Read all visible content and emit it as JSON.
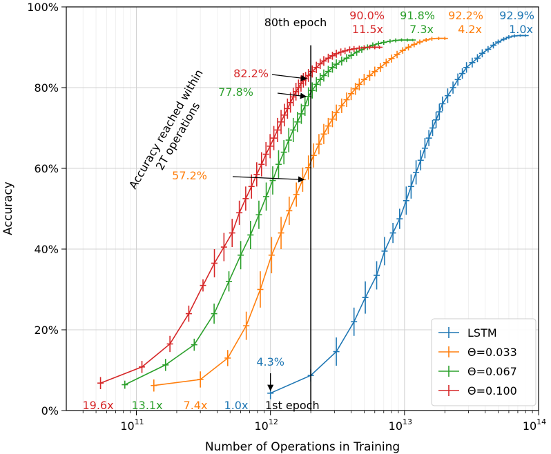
{
  "chart_data": {
    "type": "line",
    "title": "",
    "xlabel": "Number of Operations in Training",
    "ylabel": "Accuracy",
    "xscale": "log",
    "xlim": [
      30000000000.0,
      100000000000000.0
    ],
    "ylim": [
      0,
      100
    ],
    "grid": true,
    "legend_position": "lower-right",
    "x_ticks": [
      {
        "value": 100000000000.0,
        "base": "10",
        "exp": "11"
      },
      {
        "value": 1000000000000.0,
        "base": "10",
        "exp": "12"
      },
      {
        "value": 10000000000000.0,
        "base": "10",
        "exp": "13"
      },
      {
        "value": 100000000000000.0,
        "base": "10",
        "exp": "14"
      }
    ],
    "y_ticks": [
      {
        "value": 0,
        "label": "0%"
      },
      {
        "value": 20,
        "label": "20%"
      },
      {
        "value": 40,
        "label": "40%"
      },
      {
        "value": 60,
        "label": "60%"
      },
      {
        "value": 80,
        "label": "80%"
      },
      {
        "value": 100,
        "label": "100%"
      }
    ],
    "series": [
      {
        "name": "LSTM",
        "color": "#1f77b4",
        "points": [
          [
            1000000000000.0,
            4.3,
            1.5
          ],
          [
            2000000000000.0,
            8.7,
            1.5
          ],
          [
            3100000000000.0,
            14.6,
            3.5
          ],
          [
            4200000000000.0,
            22,
            3.5
          ],
          [
            5100000000000.0,
            28,
            4
          ],
          [
            6200000000000.0,
            33.5,
            3.5
          ],
          [
            7100000000000.0,
            39.5,
            3.5
          ],
          [
            8200000000000.0,
            44,
            2.5
          ],
          [
            9200000000000.0,
            47.5,
            2.5
          ],
          [
            10300000000000.0,
            52,
            3.5
          ],
          [
            11200000000000.0,
            55.5,
            3
          ],
          [
            12200000000000.0,
            59,
            3
          ],
          [
            13200000000000.0,
            62,
            2.5
          ],
          [
            14200000000000.0,
            65,
            2.5
          ],
          [
            15200000000000.0,
            67.5,
            2
          ],
          [
            16200000000000.0,
            70,
            2
          ],
          [
            17200000000000.0,
            72,
            2
          ],
          [
            18200000000000.0,
            74,
            2
          ],
          [
            19200000000000.0,
            76,
            1.8
          ],
          [
            21000000000000.0,
            78,
            1.8
          ],
          [
            23000000000000.0,
            80,
            1.5
          ],
          [
            25000000000000.0,
            82,
            1.5
          ],
          [
            27000000000000.0,
            83.5,
            1.3
          ],
          [
            29000000000000.0,
            85,
            1.3
          ],
          [
            32000000000000.0,
            86.2,
            1.2
          ],
          [
            35000000000000.0,
            87.3,
            1.0
          ],
          [
            38000000000000.0,
            88.5,
            1.0
          ],
          [
            42000000000000.0,
            89.5,
            0.8
          ],
          [
            46000000000000.0,
            90.5,
            0.8
          ],
          [
            50000000000000.0,
            91.3,
            0.6
          ],
          [
            55000000000000.0,
            92,
            0.5
          ],
          [
            60000000000000.0,
            92.5,
            0.5
          ],
          [
            66000000000000.0,
            92.8,
            0.4
          ],
          [
            73000000000000.0,
            92.9,
            0.3
          ],
          [
            80000000000000.0,
            92.9,
            0.3
          ]
        ]
      },
      {
        "name": "Θ=0.033",
        "color": "#ff7f0e",
        "points": [
          [
            135000000000.0,
            6.2,
            1.5
          ],
          [
            300000000000.0,
            7.7,
            2
          ],
          [
            480000000000.0,
            13,
            2
          ],
          [
            660000000000.0,
            21,
            3.5
          ],
          [
            840000000000.0,
            30,
            4.5
          ],
          [
            1020000000000.0,
            38.5,
            4.5
          ],
          [
            1200000000000.0,
            44,
            4
          ],
          [
            1380000000000.0,
            49.5,
            3.5
          ],
          [
            1560000000000.0,
            53.5,
            3
          ],
          [
            1740000000000.0,
            57.2,
            3
          ],
          [
            1920000000000.0,
            60.2,
            3
          ],
          [
            2100000000000.0,
            63.2,
            3
          ],
          [
            2300000000000.0,
            66,
            2.5
          ],
          [
            2500000000000.0,
            68.5,
            2.5
          ],
          [
            2700000000000.0,
            70.5,
            2
          ],
          [
            2900000000000.0,
            72.2,
            2
          ],
          [
            3100000000000.0,
            73.8,
            2
          ],
          [
            3400000000000.0,
            75.5,
            1.8
          ],
          [
            3700000000000.0,
            77,
            1.8
          ],
          [
            4000000000000.0,
            78.5,
            1.6
          ],
          [
            4300000000000.0,
            79.7,
            1.5
          ],
          [
            4600000000000.0,
            80.8,
            1.5
          ],
          [
            5000000000000.0,
            82,
            1.4
          ],
          [
            5500000000000.0,
            83,
            1.3
          ],
          [
            6000000000000.0,
            84,
            1.2
          ],
          [
            6600000000000.0,
            85,
            1.1
          ],
          [
            7300000000000.0,
            86.2,
            1.0
          ],
          [
            8000000000000.0,
            87.2,
            1.0
          ],
          [
            8800000000000.0,
            88.2,
            0.9
          ],
          [
            9700000000000.0,
            89.2,
            0.8
          ],
          [
            10700000000000.0,
            90,
            0.8
          ],
          [
            11800000000000.0,
            90.7,
            0.7
          ],
          [
            13000000000000.0,
            91.3,
            0.6
          ],
          [
            14500000000000.0,
            91.8,
            0.5
          ],
          [
            16000000000000.0,
            92.1,
            0.5
          ],
          [
            18000000000000.0,
            92.2,
            0.4
          ],
          [
            20000000000000.0,
            92.2,
            0.4
          ]
        ]
      },
      {
        "name": "Θ=0.067",
        "color": "#2ca02c",
        "points": [
          [
            82000000000.0,
            6.4,
            1
          ],
          [
            165000000000.0,
            11.3,
            1.5
          ],
          [
            270000000000.0,
            16.3,
            1.5
          ],
          [
            380000000000.0,
            24,
            2.5
          ],
          [
            490000000000.0,
            32,
            2.5
          ],
          [
            600000000000.0,
            38.5,
            3.5
          ],
          [
            710000000000.0,
            43.5,
            3.5
          ],
          [
            820000000000.0,
            48.5,
            3.5
          ],
          [
            930000000000.0,
            53,
            3.5
          ],
          [
            1040000000000.0,
            57,
            3.5
          ],
          [
            1150000000000.0,
            61,
            3.5
          ],
          [
            1260000000000.0,
            64,
            3
          ],
          [
            1370000000000.0,
            67,
            3
          ],
          [
            1480000000000.0,
            69.5,
            3
          ],
          [
            1590000000000.0,
            71.5,
            2.5
          ],
          [
            1700000000000.0,
            73.5,
            2.5
          ],
          [
            1810000000000.0,
            75.5,
            2.5
          ],
          [
            1920000000000.0,
            77.8,
            2.3
          ],
          [
            2050000000000.0,
            79.3,
            2.0
          ],
          [
            2200000000000.0,
            80.8,
            1.8
          ],
          [
            2350000000000.0,
            82,
            1.6
          ],
          [
            2500000000000.0,
            83,
            1.5
          ],
          [
            2700000000000.0,
            84,
            1.4
          ],
          [
            2900000000000.0,
            85,
            1.3
          ],
          [
            3100000000000.0,
            85.8,
            1.2
          ],
          [
            3400000000000.0,
            86.6,
            1.1
          ],
          [
            3700000000000.0,
            87.3,
            1.0
          ],
          [
            4000000000000.0,
            88,
            0.9
          ],
          [
            4400000000000.0,
            88.8,
            0.9
          ],
          [
            4800000000000.0,
            89.4,
            0.8
          ],
          [
            5300000000000.0,
            90,
            0.7
          ],
          [
            5800000000000.0,
            90.5,
            0.7
          ],
          [
            6400000000000.0,
            90.9,
            0.6
          ],
          [
            7000000000000.0,
            91.2,
            0.6
          ],
          [
            7800000000000.0,
            91.5,
            0.5
          ],
          [
            8600000000000.0,
            91.7,
            0.5
          ],
          [
            9500000000000.0,
            91.8,
            0.4
          ],
          [
            10500000000000.0,
            91.8,
            0.4
          ],
          [
            11500000000000.0,
            91.8,
            0.3
          ]
        ]
      },
      {
        "name": "Θ=0.100",
        "color": "#d62728",
        "points": [
          [
            54000000000.0,
            6.8,
            1.5
          ],
          [
            110000000000.0,
            10.8,
            1.5
          ],
          [
            178000000000.0,
            16.5,
            2
          ],
          [
            246000000000.0,
            24,
            2
          ],
          [
            314000000000.0,
            31,
            1.5
          ],
          [
            382000000000.0,
            36.5,
            3.5
          ],
          [
            450000000000.0,
            40.5,
            3.5
          ],
          [
            518000000000.0,
            44,
            3.5
          ],
          [
            586000000000.0,
            49,
            3
          ],
          [
            654000000000.0,
            52.5,
            3
          ],
          [
            722000000000.0,
            55.5,
            3
          ],
          [
            790000000000.0,
            58.5,
            3
          ],
          [
            858000000000.0,
            61,
            3
          ],
          [
            926000000000.0,
            63.5,
            3
          ],
          [
            994000000000.0,
            65.5,
            3
          ],
          [
            1060000000000.0,
            67.5,
            3
          ],
          [
            1130000000000.0,
            69.5,
            3
          ],
          [
            1200000000000.0,
            71.5,
            3
          ],
          [
            1270000000000.0,
            73.2,
            2.8
          ],
          [
            1340000000000.0,
            74.8,
            2.5
          ],
          [
            1410000000000.0,
            76.3,
            2.5
          ],
          [
            1480000000000.0,
            77.7,
            2.3
          ],
          [
            1550000000000.0,
            79,
            2.2
          ],
          [
            1620000000000.0,
            80,
            2.0
          ],
          [
            1690000000000.0,
            81,
            2.0
          ],
          [
            1760000000000.0,
            81.8,
            1.8
          ],
          [
            1830000000000.0,
            82.2,
            1.7
          ],
          [
            1920000000000.0,
            83,
            1.6
          ],
          [
            2050000000000.0,
            84,
            1.5
          ],
          [
            2200000000000.0,
            85,
            1.4
          ],
          [
            2350000000000.0,
            85.9,
            1.3
          ],
          [
            2500000000000.0,
            86.6,
            1.2
          ],
          [
            2700000000000.0,
            87.3,
            1.1
          ],
          [
            2900000000000.0,
            87.9,
            1.0
          ],
          [
            3100000000000.0,
            88.4,
            1.0
          ],
          [
            3350000000000.0,
            88.8,
            0.9
          ],
          [
            3600000000000.0,
            89.1,
            0.8
          ],
          [
            3900000000000.0,
            89.4,
            0.8
          ],
          [
            4200000000000.0,
            89.6,
            0.7
          ],
          [
            4600000000000.0,
            89.8,
            0.6
          ],
          [
            5000000000000.0,
            89.9,
            0.6
          ],
          [
            5500000000000.0,
            90,
            0.5
          ],
          [
            6000000000000.0,
            90,
            0.5
          ],
          [
            6500000000000.0,
            90,
            0.4
          ]
        ]
      }
    ],
    "annotations": {
      "top_accuracy": [
        {
          "text": "90.0%",
          "series": "Θ=0.100",
          "color": "#d62728"
        },
        {
          "text": "91.8%",
          "series": "Θ=0.067",
          "color": "#2ca02c"
        },
        {
          "text": "92.2%",
          "series": "Θ=0.033",
          "color": "#ff7f0e"
        },
        {
          "text": "92.9%",
          "series": "LSTM",
          "color": "#1f77b4"
        }
      ],
      "top_speedup": [
        {
          "text": "11.5x",
          "series": "Θ=0.100",
          "color": "#d62728"
        },
        {
          "text": "7.3x",
          "series": "Θ=0.067",
          "color": "#2ca02c"
        },
        {
          "text": "4.2x",
          "series": "Θ=0.033",
          "color": "#ff7f0e"
        },
        {
          "text": "1.0x",
          "series": "LSTM",
          "color": "#1f77b4"
        }
      ],
      "bottom_speedup": [
        {
          "text": "19.6x",
          "series": "Θ=0.100",
          "color": "#d62728"
        },
        {
          "text": "13.1x",
          "series": "Θ=0.067",
          "color": "#2ca02c"
        },
        {
          "text": "7.4x",
          "series": "Θ=0.033",
          "color": "#ff7f0e"
        },
        {
          "text": "1.0x",
          "series": "LSTM",
          "color": "#1f77b4"
        }
      ],
      "epoch80_label": "80th epoch",
      "epoch80_x": 2000000000000.0,
      "epoch1_label": "1st epoch",
      "within_label_line1": "Accuracy reached within",
      "within_label_line2": "2T operations",
      "reached": [
        {
          "text": "82.2%",
          "series": "Θ=0.100",
          "color": "#d62728",
          "x": 2000000000000.0,
          "y": 82.2
        },
        {
          "text": "77.8%",
          "series": "Θ=0.067",
          "color": "#2ca02c",
          "x": 2000000000000.0,
          "y": 77.8
        },
        {
          "text": "57.2%",
          "series": "Θ=0.033",
          "color": "#ff7f0e",
          "x": 2000000000000.0,
          "y": 57.2
        },
        {
          "text": "4.3%",
          "series": "LSTM",
          "color": "#1f77b4",
          "x": 1000000000000.0,
          "y": 4.3
        }
      ]
    }
  }
}
